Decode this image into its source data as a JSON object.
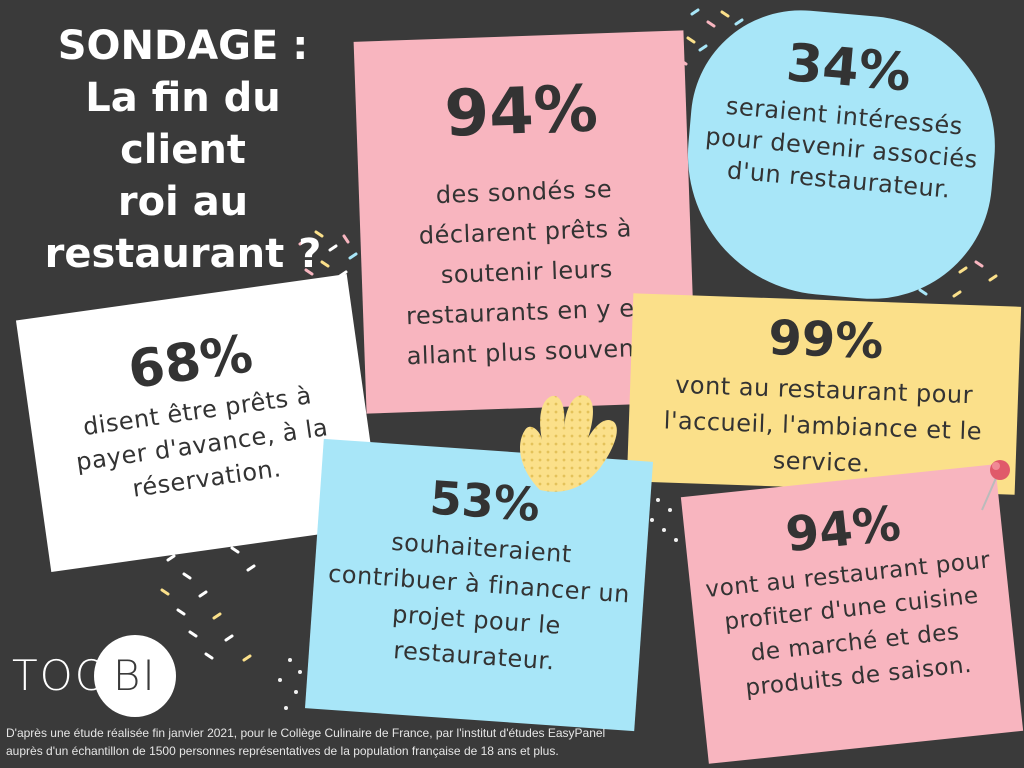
{
  "title": {
    "line1": "SONDAGE :",
    "line2": "La fin du client",
    "line3": "roi au",
    "line4": "restaurant ?"
  },
  "colors": {
    "background": "#3a3a3a",
    "pink": "#f8b5bf",
    "blue": "#a8e6f8",
    "yellow": "#fbe08a",
    "white": "#ffffff",
    "text": "#333333"
  },
  "stats": [
    {
      "id": "n94a",
      "percent": "94%",
      "text": "des sondés se déclarent prêts à soutenir leurs restaurants en y en allant plus souvent.",
      "color": "pink"
    },
    {
      "id": "n34",
      "percent": "34%",
      "text": "seraient intéressés pour devenir associés d'un restaurateur.",
      "color": "blue"
    },
    {
      "id": "n68",
      "percent": "68%",
      "text": "disent être prêts à payer d'avance, à la réservation.",
      "color": "white"
    },
    {
      "id": "n99",
      "percent": "99%",
      "text": "vont au restaurant pour l'accueil, l'ambiance et le service.",
      "color": "yellow"
    },
    {
      "id": "n53",
      "percent": "53%",
      "text": "souhaiteraient contribuer à financer un projet pour le restaurateur.",
      "color": "blue"
    },
    {
      "id": "n94b",
      "percent": "94%",
      "text": "vont au restaurant pour profiter d'une cuisine de marché et des produits de saison.",
      "color": "pink"
    }
  ],
  "logo": {
    "part1": "TOO",
    "part2": "BI"
  },
  "footer": {
    "line1": "D'après une étude réalisée fin janvier 2021, pour le Collège Culinaire de France, par l'institut d'études EasyPanel",
    "line2": "auprès d'un échantillon de 1500 personnes représentatives de la population française de 18 ans et plus."
  }
}
